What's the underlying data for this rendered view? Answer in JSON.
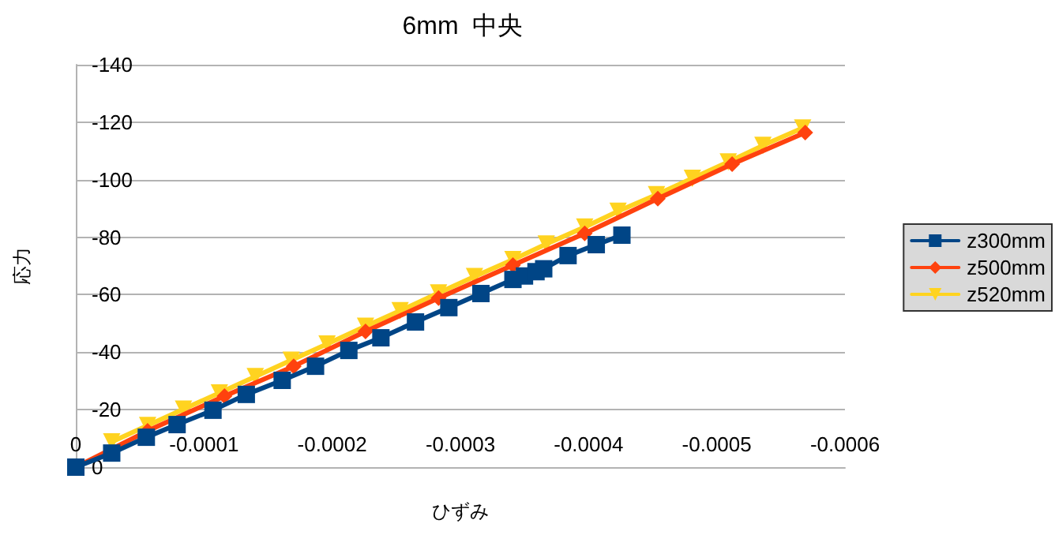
{
  "chart_data": {
    "type": "line",
    "title": "6mm  中央",
    "xlabel": "ひずみ",
    "ylabel": "応力",
    "xlim": [
      0,
      -0.0006
    ],
    "xticks": [
      0,
      -0.0001,
      -0.0002,
      -0.0003,
      -0.0004,
      -0.0005,
      -0.0006
    ],
    "ylim": [
      0,
      -140
    ],
    "yticks": [
      0,
      -20,
      -40,
      -60,
      -80,
      -100,
      -120,
      -140
    ],
    "grid": "y",
    "legend": "right",
    "line_style": "solid",
    "series": [
      {
        "name": "z300mm",
        "color": "#004586",
        "marker": "square",
        "x": [
          0,
          -2.8e-05,
          -5.5e-05,
          -7.9e-05,
          -0.000107,
          -0.000133,
          -0.000161,
          -0.000187,
          -0.000213,
          -0.000238,
          -0.000265,
          -0.000291,
          -0.000316,
          -0.000341,
          -0.00035,
          -0.000359,
          -0.000365,
          -0.000384,
          -0.000406,
          -0.000426
        ],
        "values": [
          0,
          -4.9,
          -10.4,
          -14.8,
          -19.8,
          -25.3,
          -30.2,
          -35.1,
          -40.6,
          -45,
          -50.5,
          -55.5,
          -60.4,
          -65.3,
          -66.5,
          -68,
          -69,
          -73.6,
          -77.4,
          -80.7
        ]
      },
      {
        "name": "z500mm",
        "color": "#ff420e",
        "marker": "diamond",
        "x": [
          0,
          -5.6e-05,
          -0.000116,
          -0.00017,
          -0.000226,
          -0.000283,
          -0.000341,
          -0.000397,
          -0.000454,
          -0.000512,
          -0.000569
        ],
        "values": [
          0,
          -12.6,
          -24.7,
          -35.1,
          -47.2,
          -58.8,
          -70.3,
          -81.3,
          -93.4,
          -105.4,
          -116.4
        ]
      },
      {
        "name": "z520mm",
        "color": "#ffd320",
        "marker": "triangle",
        "x": [
          -2.8e-05,
          -5.6e-05,
          -8.4e-05,
          -0.000112,
          -0.00014,
          -0.000168,
          -0.000196,
          -0.000226,
          -0.000253,
          -0.000283,
          -0.000311,
          -0.000341,
          -0.000367,
          -0.000397,
          -0.000423,
          -0.000453,
          -0.000481,
          -0.000509,
          -0.000536,
          -0.000567
        ],
        "values": [
          -8.8,
          -14.5,
          -20.2,
          -25.8,
          -31.5,
          -37.2,
          -42.8,
          -49,
          -54.4,
          -60.6,
          -66.3,
          -72.2,
          -77.6,
          -83.5,
          -89,
          -94.8,
          -100.5,
          -106.2,
          -111.9,
          -118
        ]
      }
    ]
  }
}
